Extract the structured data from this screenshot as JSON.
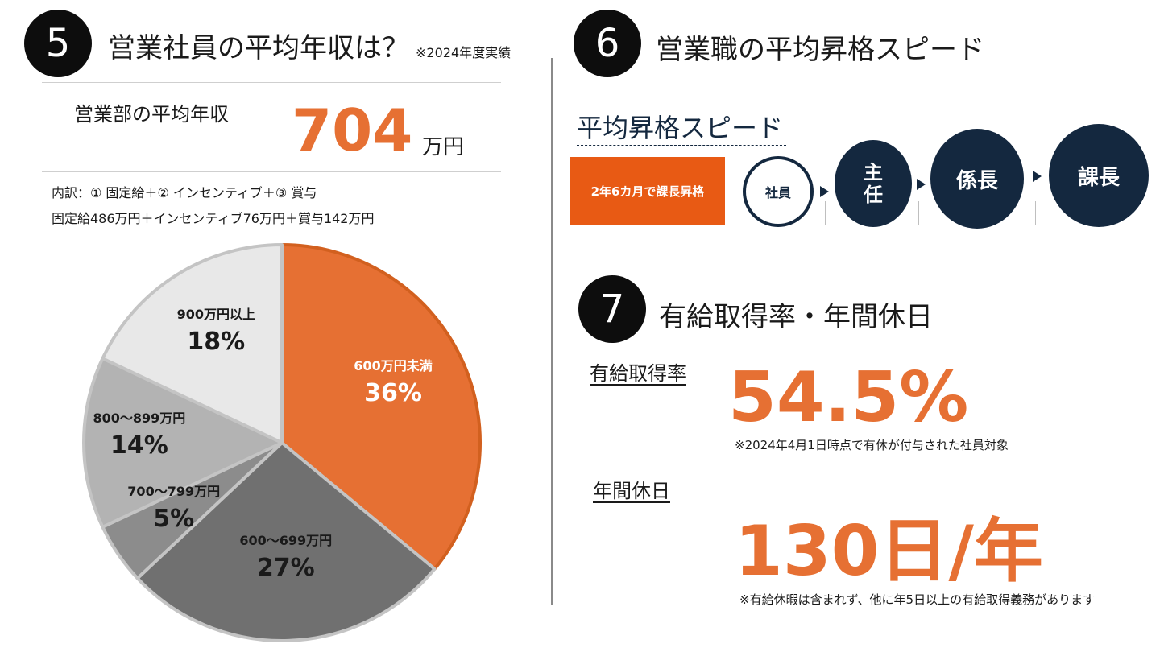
{
  "section5": {
    "number": "5",
    "title": "営業社員の平均年収は？",
    "title_note": "※2024年度実績",
    "avg_label": "営業部の平均年収",
    "avg_value": "704",
    "avg_unit": "万円",
    "breakdown_line1": "内訳：① 固定給＋② インセンティブ＋③ 賞与",
    "breakdown_line2": "固定給486万円＋インセンティブ76万円＋賞与142万円"
  },
  "chart_data": {
    "type": "pie",
    "categories": [
      "600万円未満",
      "600～699万円",
      "700～799万円",
      "800～899万円",
      "900万円以上"
    ],
    "values": [
      36,
      27,
      5,
      14,
      18
    ],
    "value_labels": [
      "36%",
      "27%",
      "5%",
      "14%",
      "18%"
    ],
    "colors": [
      "#e67033",
      "#707070",
      "#8c8c8c",
      "#b3b3b3",
      "#e8e8e8"
    ],
    "label_colors": [
      "#ffffff",
      "#1a1a1a",
      "#1a1a1a",
      "#1a1a1a",
      "#1a1a1a"
    ]
  },
  "section6": {
    "number": "6",
    "title": "営業職の平均昇格スピード",
    "subtitle": "平均昇格スピード",
    "speed_box": "2年6カ月で課長昇格",
    "steps": [
      "社員",
      "主\n任",
      "係長",
      "課長"
    ]
  },
  "section7": {
    "number": "7",
    "title": "有給取得率・年間休日",
    "leave_label": "有給取得率",
    "leave_value": "54.5%",
    "leave_note": "※2024年4月1日時点で有休が付与された社員対象",
    "holiday_label": "年間休日",
    "holiday_value": "130日/年",
    "holiday_note": "※有給休暇は含まれず、他に年5日以上の有給取得義務があります"
  }
}
